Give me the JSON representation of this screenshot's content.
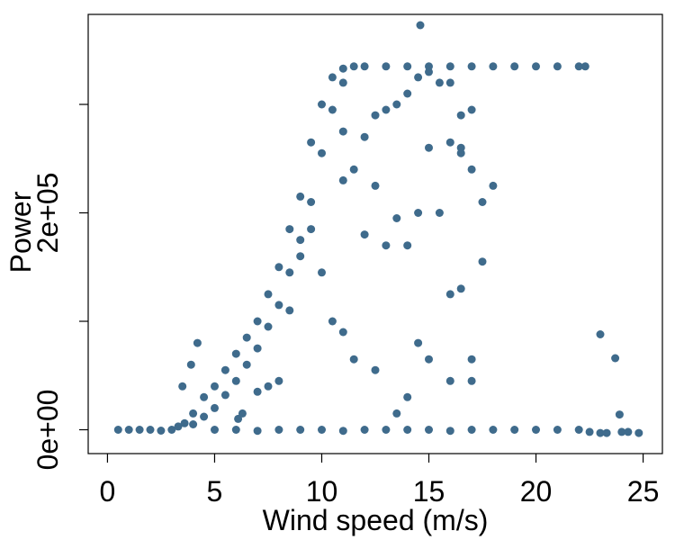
{
  "chart_data": {
    "type": "scatter",
    "title": "",
    "xlabel": "Wind speed (m/s)",
    "ylabel": "Power",
    "xlim": [
      -0.9,
      25.9
    ],
    "ylim": [
      -22000,
      383000
    ],
    "x_ticks": [
      {
        "value": 0,
        "label": "0"
      },
      {
        "value": 5,
        "label": "5"
      },
      {
        "value": 10,
        "label": "10"
      },
      {
        "value": 15,
        "label": "15"
      },
      {
        "value": 20,
        "label": "20"
      },
      {
        "value": 25,
        "label": "25"
      }
    ],
    "y_ticks": [
      {
        "value": 0,
        "label": "0e+00"
      },
      {
        "value": 100000,
        "label": ""
      },
      {
        "value": 200000,
        "label": "2e+05"
      },
      {
        "value": 300000,
        "label": ""
      }
    ],
    "grid": false,
    "marker_color": "#3f6b8c",
    "series": [
      {
        "points": [
          [
            0.5,
            0
          ],
          [
            1.0,
            0
          ],
          [
            1.5,
            0
          ],
          [
            2.0,
            0
          ],
          [
            2.5,
            -800
          ],
          [
            3.0,
            0
          ],
          [
            3.3,
            3000
          ],
          [
            3.6,
            6000
          ],
          [
            4.0,
            15000
          ],
          [
            4.5,
            30000
          ],
          [
            5.0,
            40000
          ],
          [
            5.5,
            55000
          ],
          [
            6.0,
            70000
          ],
          [
            6.5,
            85000
          ],
          [
            7.0,
            100000
          ],
          [
            7.5,
            125000
          ],
          [
            8.0,
            150000
          ],
          [
            8.5,
            185000
          ],
          [
            9.0,
            215000
          ],
          [
            9.5,
            265000
          ],
          [
            10.0,
            300000
          ],
          [
            10.5,
            325000
          ],
          [
            11.0,
            333000
          ],
          [
            11.5,
            335000
          ],
          [
            12.0,
            335000
          ],
          [
            13.0,
            335000
          ],
          [
            14.0,
            335000
          ],
          [
            15.0,
            335000
          ],
          [
            16.0,
            335000
          ],
          [
            17.0,
            335000
          ],
          [
            18.0,
            335000
          ],
          [
            19.0,
            335000
          ],
          [
            20.0,
            335000
          ],
          [
            21.0,
            335000
          ],
          [
            22.0,
            335000
          ],
          [
            22.3,
            335000
          ],
          [
            4.0,
            5000
          ],
          [
            4.5,
            12000
          ],
          [
            5.0,
            20000
          ],
          [
            5.5,
            32000
          ],
          [
            6.0,
            45000
          ],
          [
            6.5,
            60000
          ],
          [
            7.0,
            75000
          ],
          [
            7.5,
            95000
          ],
          [
            8.0,
            115000
          ],
          [
            8.5,
            145000
          ],
          [
            9.0,
            175000
          ],
          [
            9.5,
            210000
          ],
          [
            10.0,
            255000
          ],
          [
            10.5,
            295000
          ],
          [
            11.0,
            320000
          ],
          [
            3.5,
            40000
          ],
          [
            4.2,
            80000
          ],
          [
            3.9,
            60000
          ],
          [
            6.1,
            10000
          ],
          [
            6.3,
            15000
          ],
          [
            7.0,
            35000
          ],
          [
            7.5,
            40000
          ],
          [
            8.0,
            45000
          ],
          [
            8.5,
            110000
          ],
          [
            9.0,
            160000
          ],
          [
            9.5,
            185000
          ],
          [
            10.0,
            145000
          ],
          [
            10.5,
            100000
          ],
          [
            11.0,
            90000
          ],
          [
            11.5,
            65000
          ],
          [
            12.5,
            55000
          ],
          [
            13.5,
            15000
          ],
          [
            14.0,
            30000
          ],
          [
            14.5,
            80000
          ],
          [
            15.0,
            65000
          ],
          [
            16.0,
            45000
          ],
          [
            17.0,
            45000
          ],
          [
            17.0,
            65000
          ],
          [
            11.0,
            230000
          ],
          [
            11.5,
            240000
          ],
          [
            12.5,
            225000
          ],
          [
            12.0,
            180000
          ],
          [
            13.0,
            170000
          ],
          [
            13.5,
            195000
          ],
          [
            14.0,
            170000
          ],
          [
            14.5,
            200000
          ],
          [
            15.0,
            260000
          ],
          [
            16.0,
            125000
          ],
          [
            16.5,
            130000
          ],
          [
            17.5,
            155000
          ],
          [
            16.0,
            265000
          ],
          [
            16.5,
            260000
          ],
          [
            17.0,
            240000
          ],
          [
            17.5,
            210000
          ],
          [
            15.5,
            200000
          ],
          [
            16.5,
            255000
          ],
          [
            18.0,
            225000
          ],
          [
            12.5,
            290000
          ],
          [
            13.0,
            295000
          ],
          [
            13.5,
            300000
          ],
          [
            14.0,
            310000
          ],
          [
            14.5,
            325000
          ],
          [
            15.0,
            330000
          ],
          [
            15.5,
            320000
          ],
          [
            16.5,
            290000
          ],
          [
            17.0,
            295000
          ],
          [
            16.0,
            320000
          ],
          [
            12.0,
            270000
          ],
          [
            11.0,
            275000
          ],
          [
            14.6,
            373000
          ],
          [
            5.0,
            0
          ],
          [
            6.0,
            0
          ],
          [
            7.0,
            -1000
          ],
          [
            8.0,
            0
          ],
          [
            9.0,
            0
          ],
          [
            10.0,
            0
          ],
          [
            11.0,
            -1000
          ],
          [
            12.0,
            0
          ],
          [
            13.0,
            0
          ],
          [
            14.0,
            0
          ],
          [
            15.0,
            0
          ],
          [
            16.0,
            -1000
          ],
          [
            17.0,
            0
          ],
          [
            18.0,
            0
          ],
          [
            19.0,
            0
          ],
          [
            20.0,
            0
          ],
          [
            21.0,
            0
          ],
          [
            22.0,
            0
          ],
          [
            22.5,
            -2000
          ],
          [
            23.0,
            -3000
          ],
          [
            23.3,
            -3000
          ],
          [
            24.0,
            -2000
          ],
          [
            24.3,
            -2000
          ],
          [
            24.8,
            -3000
          ],
          [
            23.0,
            88000
          ],
          [
            23.7,
            66000
          ],
          [
            23.9,
            14000
          ]
        ]
      }
    ]
  }
}
